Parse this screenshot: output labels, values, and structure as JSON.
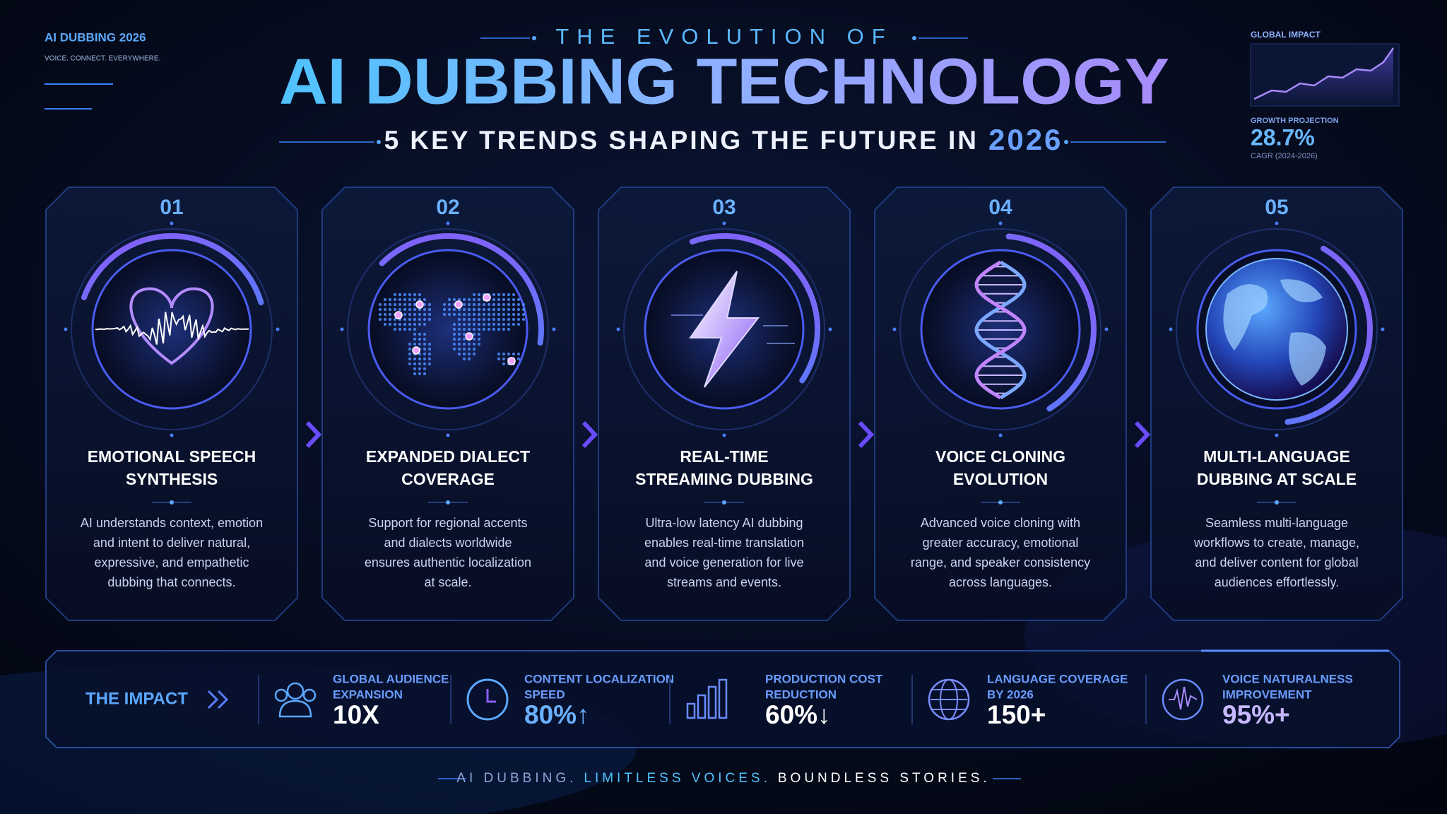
{
  "header": {
    "brand": "AI DUBBING 2026",
    "tagline": "VOICE. CONNECT. EVERYWHERE.",
    "kicker": "THE EVOLUTION OF",
    "title": "AI DUBBING TECHNOLOGY",
    "subtitle": "5 KEY TRENDS SHAPING THE FUTURE IN",
    "subtitle_year": "2026"
  },
  "stats_panel": {
    "label": "GLOBAL IMPACT",
    "metric_label": "GROWTH PROJECTION",
    "metric_value": "28.7%",
    "metric_note": "CAGR (2024-2026)"
  },
  "trends": [
    {
      "number": "01",
      "title": [
        "EMOTIONAL SPEECH",
        "SYNTHESIS"
      ],
      "description": [
        "AI understands context, emotion",
        "and intent to deliver natural,",
        "expressive, and empathetic",
        "dubbing that connects."
      ]
    },
    {
      "number": "02",
      "title": [
        "EXPANDED DIALECT",
        "COVERAGE"
      ],
      "description": [
        "Support for regional accents",
        "and dialects worldwide",
        "ensures authentic localization",
        "at scale."
      ]
    },
    {
      "number": "03",
      "title": [
        "REAL-TIME",
        "STREAMING DUBBING"
      ],
      "description": [
        "Ultra-low latency AI dubbing",
        "enables real-time translation",
        "and voice generation for live",
        "streams and events."
      ]
    },
    {
      "number": "04",
      "title": [
        "VOICE CLONING",
        "EVOLUTION"
      ],
      "description": [
        "Advanced voice cloning with",
        "greater accuracy, emotional",
        "range, and speaker consistency",
        "across languages."
      ]
    },
    {
      "number": "05",
      "title": [
        "MULTI-LANGUAGE",
        "DUBBING AT SCALE"
      ],
      "description": [
        "Seamless multi-language",
        "workflows to create, manage,",
        "and deliver content for global",
        "audiences effortlessly."
      ]
    }
  ],
  "impact": {
    "label": "THE IMPACT",
    "items": [
      {
        "label": [
          "GLOBAL AUDIENCE",
          "EXPANSION"
        ],
        "value": "10X"
      },
      {
        "label": [
          "CONTENT LOCALIZATION",
          "SPEED"
        ],
        "value": "80%↑"
      },
      {
        "label": [
          "PRODUCTION COST",
          "REDUCTION"
        ],
        "value": "60%↓"
      },
      {
        "label": [
          "LANGUAGE COVERAGE",
          "BY 2026"
        ],
        "value": "150+"
      },
      {
        "label": [
          "VOICE NATURALNESS",
          "IMPROVEMENT"
        ],
        "value": "95%+"
      }
    ]
  },
  "footer": [
    "AI DUBBING.",
    "LIMITLESS VOICES.",
    "BOUNDLESS STORIES."
  ]
}
